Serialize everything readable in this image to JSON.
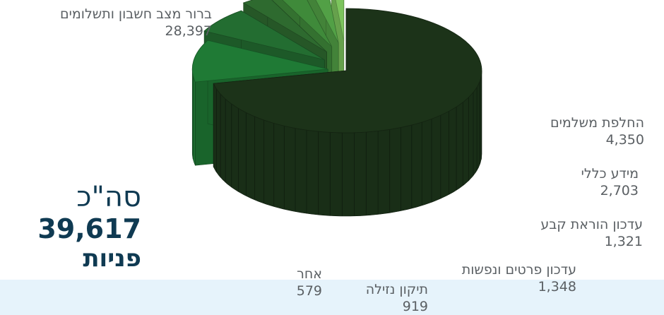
{
  "total": {
    "caption": "סה\"כ",
    "value": "39,617",
    "unit": "פניות"
  },
  "chart_data": {
    "type": "pie",
    "style": "3d-exploded",
    "slices": [
      {
        "label": "ברור מצב חשבון ותשלומים",
        "value": 28397,
        "value_label": "28,397",
        "color": "#1c3319"
      },
      {
        "label": "החלפת משלמים",
        "value": 4350,
        "value_label": "4,350",
        "color": "#1f7a35"
      },
      {
        "label": "מידע כללי",
        "value": 2703,
        "value_label": "2,703",
        "color": "#236d31"
      },
      {
        "label": "עדכון הוראת קבע",
        "value": 1321,
        "value_label": "1,321",
        "color": "#2e6a2f"
      },
      {
        "label": "עדכון פרטים ונפשות",
        "value": 1348,
        "value_label": "1,348",
        "color": "#3f8a3a"
      },
      {
        "label": "תיקון נזילה",
        "value": 919,
        "value_label": "919",
        "color": "#52a046"
      },
      {
        "label": "אחר",
        "value": 579,
        "value_label": "579",
        "color": "#7cc45d"
      }
    ]
  }
}
